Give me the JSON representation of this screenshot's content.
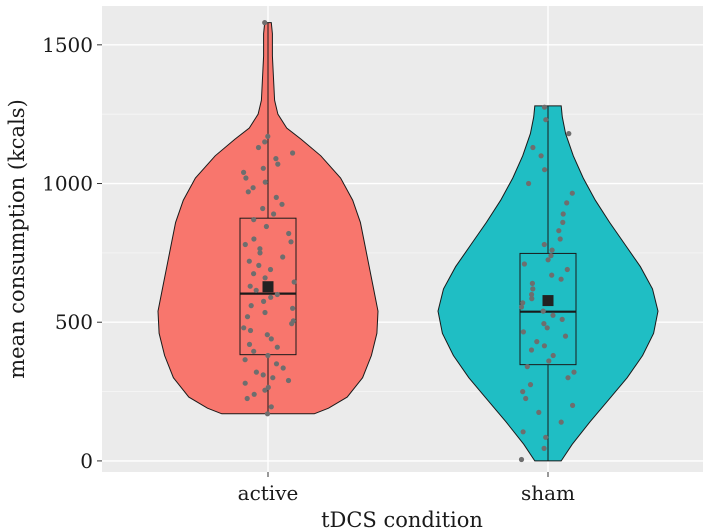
{
  "chart_data": {
    "type": "violin",
    "xlabel": "tDCS condition",
    "ylabel": "mean consumption (kcals)",
    "ylim": [
      -40,
      1640
    ],
    "yticks": [
      0,
      500,
      1000,
      1500
    ],
    "grid": true,
    "colors": {
      "active": "#f8766d",
      "sham": "#1fbec4",
      "panel": "#ebebeb",
      "gridline": "#ffffff",
      "points": "#6e6e6e",
      "mean_marker": "#222222"
    },
    "groups": [
      {
        "name": "active",
        "range": [
          170,
          1580
        ],
        "box": {
          "q1": 383,
          "median": 603,
          "q3": 875,
          "whisker_low": 170,
          "whisker_high": 1580
        },
        "mean": 628,
        "density": [
          [
            170,
            0.42
          ],
          [
            190,
            0.55
          ],
          [
            230,
            0.72
          ],
          [
            300,
            0.86
          ],
          [
            380,
            0.94
          ],
          [
            460,
            0.99
          ],
          [
            540,
            1.0
          ],
          [
            620,
            0.96
          ],
          [
            700,
            0.92
          ],
          [
            780,
            0.88
          ],
          [
            860,
            0.84
          ],
          [
            940,
            0.77
          ],
          [
            1020,
            0.66
          ],
          [
            1100,
            0.48
          ],
          [
            1160,
            0.3
          ],
          [
            1200,
            0.17
          ],
          [
            1250,
            0.09
          ],
          [
            1300,
            0.06
          ],
          [
            1380,
            0.05
          ],
          [
            1460,
            0.04
          ],
          [
            1540,
            0.04
          ],
          [
            1580,
            0.03
          ]
        ],
        "points": [
          170,
          195,
          225,
          240,
          255,
          265,
          280,
          290,
          300,
          310,
          320,
          335,
          350,
          365,
          380,
          395,
          410,
          420,
          440,
          455,
          470,
          480,
          495,
          505,
          520,
          535,
          550,
          560,
          575,
          590,
          600,
          615,
          630,
          645,
          660,
          675,
          690,
          705,
          720,
          735,
          750,
          765,
          780,
          790,
          800,
          820,
          845,
          870,
          890,
          910,
          925,
          950,
          970,
          985,
          1005,
          1020,
          1040,
          1055,
          1070,
          1090,
          1110,
          1130,
          1150,
          1170,
          1580
        ]
      },
      {
        "name": "sham",
        "range": [
          0,
          1280
        ],
        "box": {
          "q1": 347,
          "median": 538,
          "q3": 748,
          "whisker_low": 0,
          "whisker_high": 1280
        },
        "mean": 578,
        "density": [
          [
            0,
            0.12
          ],
          [
            60,
            0.22
          ],
          [
            140,
            0.38
          ],
          [
            220,
            0.55
          ],
          [
            300,
            0.72
          ],
          [
            380,
            0.86
          ],
          [
            460,
            0.96
          ],
          [
            540,
            1.0
          ],
          [
            620,
            0.95
          ],
          [
            700,
            0.84
          ],
          [
            780,
            0.7
          ],
          [
            860,
            0.56
          ],
          [
            940,
            0.43
          ],
          [
            1020,
            0.32
          ],
          [
            1100,
            0.23
          ],
          [
            1180,
            0.16
          ],
          [
            1240,
            0.13
          ],
          [
            1280,
            0.12
          ]
        ],
        "points": [
          5,
          45,
          85,
          105,
          140,
          175,
          200,
          225,
          250,
          275,
          300,
          320,
          340,
          360,
          380,
          400,
          415,
          430,
          450,
          465,
          480,
          495,
          510,
          525,
          540,
          555,
          570,
          585,
          600,
          620,
          640,
          655,
          670,
          690,
          710,
          725,
          740,
          760,
          780,
          800,
          830,
          860,
          890,
          930,
          965,
          1000,
          1050,
          1100,
          1130,
          1180,
          1230,
          1275
        ]
      }
    ]
  }
}
